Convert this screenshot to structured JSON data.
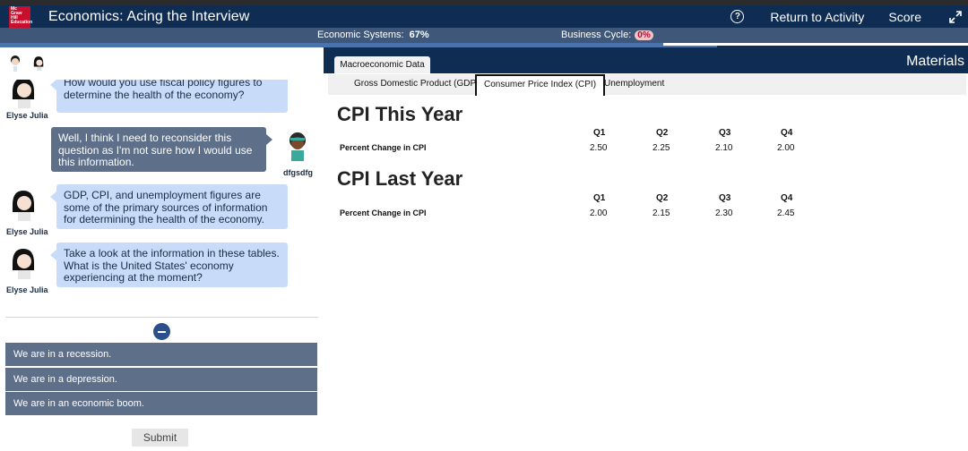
{
  "header": {
    "logo_text": "Mc Graw Hill Education",
    "title": "Economics: Acing the Interview",
    "help_icon": "question-circle-icon",
    "return_label": "Return to Activity",
    "score_label": "Score",
    "expand_icon": "expand-arrows-icon"
  },
  "progress": {
    "economic_systems_label": "Economic Systems:",
    "economic_systems_value": "67%",
    "economic_systems_fraction": 0.67,
    "business_cycle_label": "Business Cycle:",
    "business_cycle_value": "0%"
  },
  "chat": {
    "messages": [
      {
        "speaker": "Elyse Julia",
        "role": "npc",
        "text": "How would you use fiscal policy figures to determine the health of the economy?"
      },
      {
        "speaker": "dfgsdfg",
        "role": "user",
        "text": "Well, I think I need to reconsider this question as I'm not sure how I would use this information."
      },
      {
        "speaker": "Elyse Julia",
        "role": "npc",
        "text": "GDP, CPI, and unemployment figures are some of the primary sources of information for determining the health of the economy."
      },
      {
        "speaker": "Elyse Julia",
        "role": "npc",
        "text": "Take a look at the information in these tables. What is the United States' economy experiencing at the moment?"
      }
    ]
  },
  "options": [
    "We are in a recession.",
    "We are in a depression.",
    "We are in an economic boom."
  ],
  "submit_label": "Submit",
  "materials": {
    "title": "Materials",
    "main_tab": "Macroeconomic Data",
    "sub_tabs": [
      "Gross Domestic Product (GDP)",
      "Consumer Price Index (CPI)",
      "Unemployment"
    ],
    "active_sub_tab": 1,
    "tables": [
      {
        "title": "CPI This Year",
        "columns": [
          "Q1",
          "Q2",
          "Q3",
          "Q4"
        ],
        "row_label": "Percent Change in CPI",
        "values": [
          "2.50",
          "2.25",
          "2.10",
          "2.00"
        ]
      },
      {
        "title": "CPI Last Year",
        "columns": [
          "Q1",
          "Q2",
          "Q3",
          "Q4"
        ],
        "row_label": "Percent Change in CPI",
        "values": [
          "2.00",
          "2.15",
          "2.30",
          "2.45"
        ]
      }
    ]
  },
  "colors": {
    "navy": "#0f2c52",
    "npc_bubble": "#c8dcfa",
    "user_bubble": "#5d6f89",
    "accent_red": "#c8102e"
  }
}
